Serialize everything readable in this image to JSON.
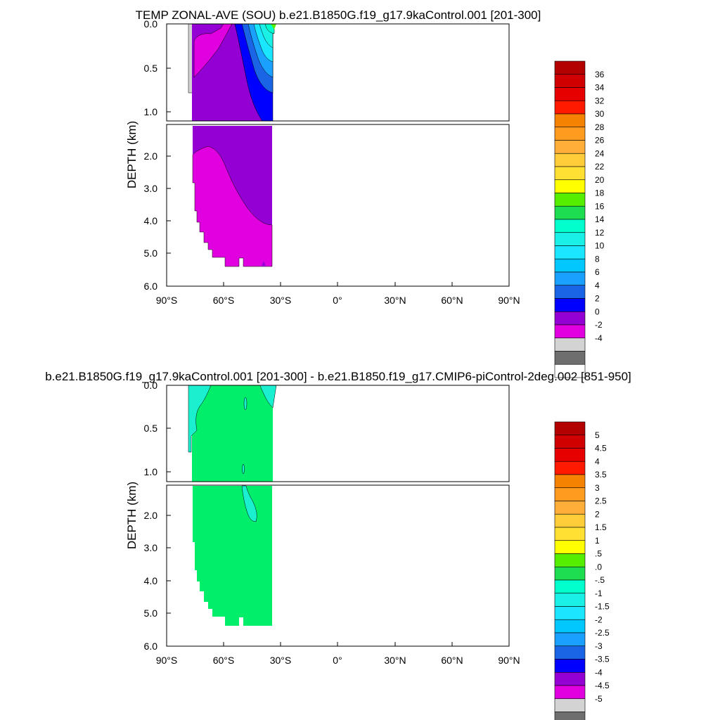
{
  "chart_data": [
    {
      "type": "heatmap",
      "title": "TEMP ZONAL-AVE (SOU) b.e21.B1850G.f19_g17.9kaControl.001 [201-300]",
      "xlabel": "",
      "ylabel": "DEPTH (km)",
      "x_ticks": [
        "90°S",
        "60°S",
        "30°S",
        "0°",
        "30°N",
        "60°N",
        "90°N"
      ],
      "y_ticks_upper": [
        "0.0",
        "0.5",
        "1.0"
      ],
      "y_ticks_lower": [
        "2.0",
        "3.0",
        "4.0",
        "5.0",
        "6.0"
      ],
      "xlim": [
        -90,
        90
      ],
      "ylim_km": [
        0,
        6
      ],
      "colorbar": {
        "labels": [
          "36",
          "34",
          "32",
          "30",
          "28",
          "26",
          "24",
          "22",
          "20",
          "18",
          "16",
          "14",
          "12",
          "10",
          "8",
          "6",
          "4",
          "2",
          "0",
          "-2",
          "-4"
        ],
        "colors": [
          "#b30000",
          "#d10000",
          "#e60000",
          "#ff1a00",
          "#f58200",
          "#ff9b1f",
          "#ffae3a",
          "#ffcd3a",
          "#ffe033",
          "#ffff00",
          "#55ee00",
          "#1fdd50",
          "#00ffcc",
          "#1af0e6",
          "#1ae6ff",
          "#00c8ff",
          "#1aa0ff",
          "#1a64e6",
          "#0000ff",
          "#9400d3",
          "#e000e0",
          "#d3d3d3",
          "#6e6e6e",
          "#ffffff"
        ]
      },
      "regions": [
        {
          "name": "-4 to -2",
          "lat": [
            -80,
            -72
          ],
          "depth": [
            0,
            0.8
          ],
          "color": "#d3d3d3"
        },
        {
          "name": "0 to 2",
          "lat": [
            -78,
            -67
          ],
          "depth": [
            0,
            0.6
          ],
          "color": "#e000e0"
        },
        {
          "name": "2 to 4",
          "lat": [
            -78,
            -35
          ],
          "depth": [
            0,
            4.1
          ],
          "color": "#9400d3"
        },
        {
          "name": "0 to 2",
          "lat": [
            -78,
            -35
          ],
          "depth": [
            1.8,
            5.4
          ],
          "color": "#e000e0"
        },
        {
          "name": "4 to 12",
          "lat": [
            -52,
            -35
          ],
          "depth": [
            0,
            1.1
          ],
          "color": "#0000ff"
        }
      ]
    },
    {
      "type": "heatmap",
      "title": "b.e21.B1850G.f19_g17.9kaControl.001 [201-300] - b.e21.B1850.f19_g17.CMIP6-piControl-2deg.002 [851-950]",
      "xlabel": "",
      "ylabel": "DEPTH (km)",
      "x_ticks": [
        "90°S",
        "60°S",
        "30°S",
        "0°",
        "30°N",
        "60°N",
        "90°N"
      ],
      "y_ticks_upper": [
        "0.0",
        "0.5",
        "1.0"
      ],
      "y_ticks_lower": [
        "2.0",
        "3.0",
        "4.0",
        "5.0",
        "6.0"
      ],
      "xlim": [
        -90,
        90
      ],
      "ylim_km": [
        0,
        6
      ],
      "colorbar": {
        "labels": [
          "5",
          "4.5",
          "4",
          "3.5",
          "3",
          "2.5",
          "2",
          "1.5",
          "1",
          ".5",
          ".0",
          "-.5",
          "-1",
          "-1.5",
          "-2",
          "-2.5",
          "-3",
          "-3.5",
          "-4",
          "-4.5",
          "-5"
        ],
        "colors": [
          "#b30000",
          "#d10000",
          "#e60000",
          "#ff1a00",
          "#f58200",
          "#ff9b1f",
          "#ffae3a",
          "#ffcd3a",
          "#ffe033",
          "#ffff00",
          "#55ee00",
          "#1fdd50",
          "#00ffcc",
          "#1af0e6",
          "#1ae6ff",
          "#00c8ff",
          "#1aa0ff",
          "#1a64e6",
          "#0000ff",
          "#9400d3",
          "#e000e0",
          "#d3d3d3",
          "#6e6e6e",
          "#ffffff"
        ]
      },
      "regions": [
        {
          "name": "0 to .5",
          "lat": [
            -78,
            -35
          ],
          "depth": [
            0,
            5.4
          ],
          "color": "#00ee6a"
        },
        {
          "name": "-.5 to 0",
          "lat": [
            -78,
            -72
          ],
          "depth": [
            0,
            0.8
          ],
          "color": "#1af0d0"
        },
        {
          "name": "-.5 to 0",
          "lat": [
            -48,
            -45
          ],
          "depth": [
            1.4,
            2.2
          ],
          "color": "#1af0d0"
        }
      ]
    }
  ]
}
